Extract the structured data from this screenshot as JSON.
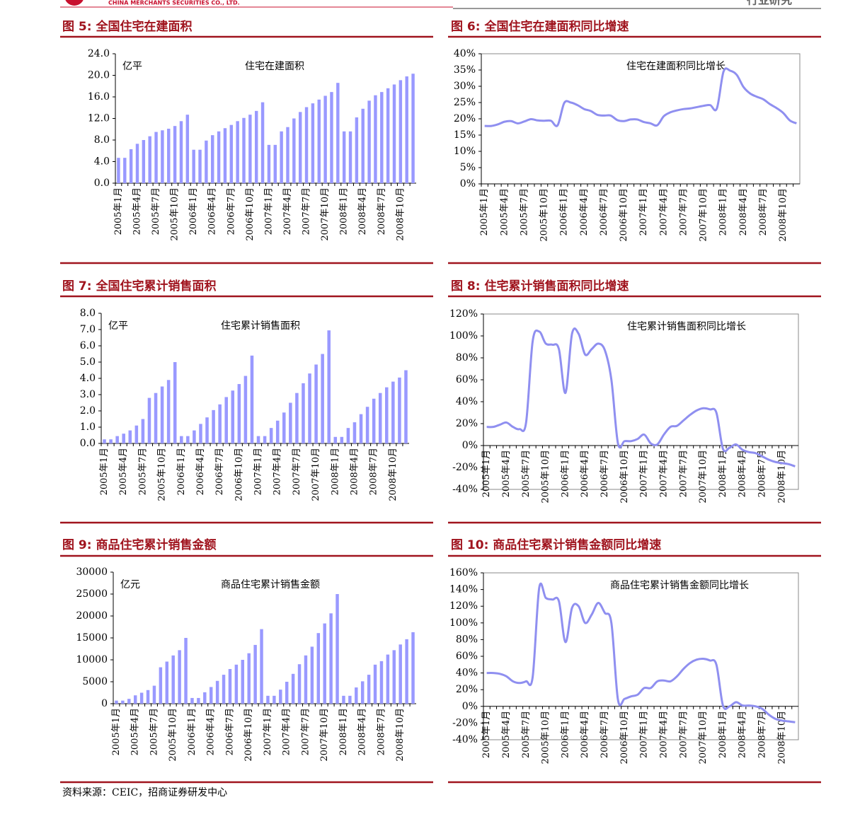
{
  "header": {
    "company": "CHINA MERCHANTS SECURITIES CO., LTD.",
    "section": "行业研究"
  },
  "source": "资料来源：CEIC，招商证券研发中心",
  "chart_data": [
    {
      "type": "bar",
      "title": "图 5: 全国住宅在建面积",
      "unit": "亿平",
      "categories": [
        "2005年1月",
        null,
        null,
        "2005年4月",
        null,
        null,
        "2005年7月",
        null,
        null,
        "2005年10月",
        null,
        null,
        "2006年1月",
        null,
        null,
        "2006年4月",
        null,
        null,
        "2006年7月",
        null,
        null,
        "2006年10月",
        null,
        null,
        "2007年1月",
        null,
        null,
        "2007年4月",
        null,
        null,
        "2007年7月",
        null,
        null,
        "2007年10月",
        null,
        null,
        "2008年1月",
        null,
        null,
        "2008年4月",
        null,
        null,
        "2008年7月",
        null,
        null,
        "2008年10月",
        null,
        null
      ],
      "series": [
        {
          "name": "住宅在建面积",
          "color": "#9999ff",
          "values": [
            4.7,
            4.7,
            6.3,
            7.3,
            8.0,
            8.7,
            9.5,
            9.8,
            10.1,
            10.6,
            11.5,
            12.7,
            6.2,
            6.2,
            7.9,
            8.9,
            9.6,
            10.2,
            10.8,
            11.5,
            12.1,
            12.7,
            13.4,
            15.0,
            7.1,
            7.1,
            9.6,
            10.4,
            12.0,
            13.2,
            14.1,
            14.8,
            15.5,
            16.2,
            16.9,
            18.6,
            9.6,
            9.6,
            12.2,
            13.8,
            15.3,
            16.3,
            16.9,
            17.6,
            18.3,
            19.1,
            19.8,
            20.3
          ]
        }
      ],
      "ylim": [
        0,
        24
      ],
      "yticks": [
        {
          "value": 0,
          "label": "0.0"
        },
        {
          "value": 4,
          "label": "4.0"
        },
        {
          "value": 8,
          "label": "8.0"
        },
        {
          "value": 12,
          "label": "12.0"
        },
        {
          "value": 16,
          "label": "16.0"
        },
        {
          "value": 20,
          "label": "20.0"
        },
        {
          "value": 24,
          "label": "24.0"
        }
      ]
    },
    {
      "type": "line",
      "title": "图 6: 全国住宅在建面积同比增速",
      "categories": [
        "2005年1月",
        null,
        null,
        "2005年4月",
        null,
        null,
        "2005年7月",
        null,
        null,
        "2005年10月",
        null,
        null,
        "2006年1月",
        null,
        null,
        "2006年4月",
        null,
        null,
        "2006年7月",
        null,
        null,
        "2006年10月",
        null,
        null,
        "2007年1月",
        null,
        null,
        "2007年4月",
        null,
        null,
        "2007年7月",
        null,
        null,
        "2007年10月",
        null,
        null,
        "2008年1月",
        null,
        null,
        "2008年4月",
        null,
        null,
        "2008年7月",
        null,
        null,
        "2008年10月",
        null,
        null
      ],
      "series": [
        {
          "name": "住宅在建面积同比增长",
          "color": "#8f8ff0",
          "values": [
            17.8,
            17.8,
            18.3,
            19.1,
            19.3,
            18.6,
            19.2,
            19.9,
            19.5,
            19.4,
            19.4,
            18.0,
            24.9,
            25.0,
            24.2,
            23.0,
            22.4,
            21.2,
            21.0,
            21.0,
            19.6,
            19.3,
            19.8,
            19.8,
            19.0,
            18.6,
            18.0,
            20.8,
            22.0,
            22.6,
            23.0,
            23.2,
            23.6,
            24.0,
            24.2,
            23.2,
            34.5,
            34.8,
            33.5,
            29.8,
            27.8,
            26.8,
            26.0,
            24.5,
            23.3,
            21.8,
            19.5,
            18.6
          ]
        }
      ],
      "ylim": [
        0,
        40
      ],
      "yticks": [
        {
          "value": 0,
          "label": "0%"
        },
        {
          "value": 5,
          "label": "5%"
        },
        {
          "value": 10,
          "label": "10%"
        },
        {
          "value": 15,
          "label": "15%"
        },
        {
          "value": 20,
          "label": "20%"
        },
        {
          "value": 25,
          "label": "25%"
        },
        {
          "value": 30,
          "label": "30%"
        },
        {
          "value": 35,
          "label": "35%"
        },
        {
          "value": 40,
          "label": "40%"
        }
      ]
    },
    {
      "type": "bar",
      "title": "图 7: 全国住宅累计销售面积",
      "unit": "亿平",
      "categories": [
        "2005年1月",
        null,
        null,
        "2005年4月",
        null,
        null,
        "2005年7月",
        null,
        null,
        "2005年10月",
        null,
        null,
        "2006年1月",
        null,
        null,
        "2006年4月",
        null,
        null,
        "2006年7月",
        null,
        null,
        "2006年10月",
        null,
        null,
        "2007年1月",
        null,
        null,
        "2007年4月",
        null,
        null,
        "2007年7月",
        null,
        null,
        "2007年10月",
        null,
        null,
        "2008年1月",
        null,
        null,
        "2008年4月",
        null,
        null,
        "2008年7月",
        null,
        null,
        "2008年10月",
        null,
        null
      ],
      "series": [
        {
          "name": "住宅累计销售面积",
          "color": "#9999ff",
          "values": [
            0.25,
            0.25,
            0.45,
            0.6,
            0.8,
            1.1,
            1.5,
            2.8,
            3.1,
            3.5,
            3.9,
            5.0,
            0.45,
            0.45,
            0.8,
            1.2,
            1.6,
            2.05,
            2.4,
            2.85,
            3.25,
            3.65,
            4.15,
            5.4,
            0.45,
            0.45,
            0.95,
            1.4,
            1.9,
            2.5,
            3.1,
            3.7,
            4.3,
            4.85,
            5.5,
            6.95,
            0.4,
            0.4,
            0.95,
            1.3,
            1.8,
            2.25,
            2.75,
            3.1,
            3.45,
            3.8,
            4.05,
            4.5
          ]
        }
      ],
      "ylim": [
        0,
        8
      ],
      "yticks": [
        {
          "value": 0,
          "label": "0.0"
        },
        {
          "value": 1,
          "label": "1.0"
        },
        {
          "value": 2,
          "label": "2.0"
        },
        {
          "value": 3,
          "label": "3.0"
        },
        {
          "value": 4,
          "label": "4.0"
        },
        {
          "value": 5,
          "label": "5.0"
        },
        {
          "value": 6,
          "label": "6.0"
        },
        {
          "value": 7,
          "label": "7.0"
        },
        {
          "value": 8,
          "label": "8.0"
        }
      ]
    },
    {
      "type": "line",
      "title": "图 8: 住宅累计销售面积同比增速",
      "categories": [
        "2005年1月",
        null,
        null,
        "2005年4月",
        null,
        null,
        "2005年7月",
        null,
        null,
        "2005年10月",
        null,
        null,
        "2006年1月",
        null,
        null,
        "2006年4月",
        null,
        null,
        "2006年7月",
        null,
        null,
        "2006年10月",
        null,
        null,
        "2007年1月",
        null,
        null,
        "2007年4月",
        null,
        null,
        "2007年7月",
        null,
        null,
        "2007年10月",
        null,
        null,
        "2008年1月",
        null,
        null,
        "2008年4月",
        null,
        null,
        "2008年7月",
        null,
        null,
        "2008年10月",
        null,
        null
      ],
      "series": [
        {
          "name": "住宅累计销售面积同比增长",
          "color": "#8f8ff0",
          "values": [
            17,
            17,
            19,
            21,
            17,
            15,
            21,
            95,
            104,
            93,
            92,
            88,
            48,
            102,
            102,
            83,
            88,
            93,
            87,
            60,
            2,
            4,
            4,
            6,
            10,
            2,
            1,
            10,
            17,
            18,
            23,
            28,
            32,
            34,
            33,
            30,
            -3,
            -2,
            1,
            -4,
            -6,
            -7,
            -10,
            -13,
            -15,
            -16,
            -17,
            -19
          ]
        }
      ],
      "ylim": [
        -40,
        120
      ],
      "yticks": [
        {
          "value": -40,
          "label": "-40%"
        },
        {
          "value": -20,
          "label": "-20%"
        },
        {
          "value": 0,
          "label": "0%"
        },
        {
          "value": 20,
          "label": "20%"
        },
        {
          "value": 40,
          "label": "40%"
        },
        {
          "value": 60,
          "label": "60%"
        },
        {
          "value": 80,
          "label": "80%"
        },
        {
          "value": 100,
          "label": "100%"
        },
        {
          "value": 120,
          "label": "120%"
        }
      ]
    },
    {
      "type": "bar",
      "title": "图 9: 商品住宅累计销售金额",
      "unit": "亿元",
      "categories": [
        "2005年1月",
        null,
        null,
        "2005年4月",
        null,
        null,
        "2005年7月",
        null,
        null,
        "2005年10月",
        null,
        null,
        "2006年1月",
        null,
        null,
        "2006年4月",
        null,
        null,
        "2006年7月",
        null,
        null,
        "2006年10月",
        null,
        null,
        "2007年1月",
        null,
        null,
        "2007年4月",
        null,
        null,
        "2007年7月",
        null,
        null,
        "2007年10月",
        null,
        null,
        "2008年1月",
        null,
        null,
        "2008年4月",
        null,
        null,
        "2008年7月",
        null,
        null,
        "2008年10月",
        null,
        null
      ],
      "series": [
        {
          "name": "商品住宅累计销售金额",
          "color": "#9999ff",
          "values": [
            700,
            700,
            1100,
            1900,
            2500,
            3100,
            4100,
            8300,
            9600,
            11000,
            12200,
            15000,
            1300,
            1300,
            2600,
            3800,
            5200,
            6600,
            7900,
            8900,
            10000,
            11500,
            13400,
            17000,
            1800,
            1800,
            3200,
            5000,
            6800,
            9000,
            11000,
            13000,
            16100,
            18300,
            20600,
            25000,
            1800,
            1800,
            3700,
            5100,
            6600,
            8900,
            9700,
            11200,
            12200,
            13500,
            14700,
            16300
          ]
        }
      ],
      "ylim": [
        0,
        30000
      ],
      "yticks": [
        0,
        5000,
        10000,
        15000,
        20000,
        25000,
        30000
      ]
    },
    {
      "type": "line",
      "title": "图 10: 商品住宅累计销售金额同比增速",
      "categories": [
        "2005年1月",
        null,
        null,
        "2005年4月",
        null,
        null,
        "2005年7月",
        null,
        null,
        "2005年10月",
        null,
        null,
        "2006年1月",
        null,
        null,
        "2006年4月",
        null,
        null,
        "2006年7月",
        null,
        null,
        "2006年10月",
        null,
        null,
        "2007年1月",
        null,
        null,
        "2007年4月",
        null,
        null,
        "2007年7月",
        null,
        null,
        "2007年10月",
        null,
        null,
        "2008年1月",
        null,
        null,
        "2008年4月",
        null,
        null,
        "2008年7月",
        null,
        null,
        "2008年10月",
        null,
        null
      ],
      "series": [
        {
          "name": "商品住宅累计销售金额同比增长",
          "color": "#8f8ff0",
          "values": [
            40,
            40,
            39,
            36,
            30,
            28,
            30,
            35,
            142,
            130,
            128,
            126,
            77,
            118,
            120,
            100,
            110,
            124,
            112,
            100,
            8,
            9,
            12,
            14,
            22,
            22,
            30,
            31,
            30,
            36,
            45,
            52,
            56,
            57,
            55,
            50,
            1,
            0,
            5,
            1,
            1,
            0,
            -3,
            -10,
            -15,
            -17,
            -18,
            -19
          ]
        }
      ],
      "ylim": [
        -40,
        160
      ],
      "yticks": [
        {
          "value": -40,
          "label": "-40%"
        },
        {
          "value": -20,
          "label": "-20%"
        },
        {
          "value": 0,
          "label": "0%"
        },
        {
          "value": 20,
          "label": "20%"
        },
        {
          "value": 40,
          "label": "40%"
        },
        {
          "value": 60,
          "label": "60%"
        },
        {
          "value": 80,
          "label": "80%"
        },
        {
          "value": 100,
          "label": "100%"
        },
        {
          "value": 120,
          "label": "120%"
        },
        {
          "value": 140,
          "label": "140%"
        },
        {
          "value": 160,
          "label": "160%"
        }
      ]
    }
  ]
}
